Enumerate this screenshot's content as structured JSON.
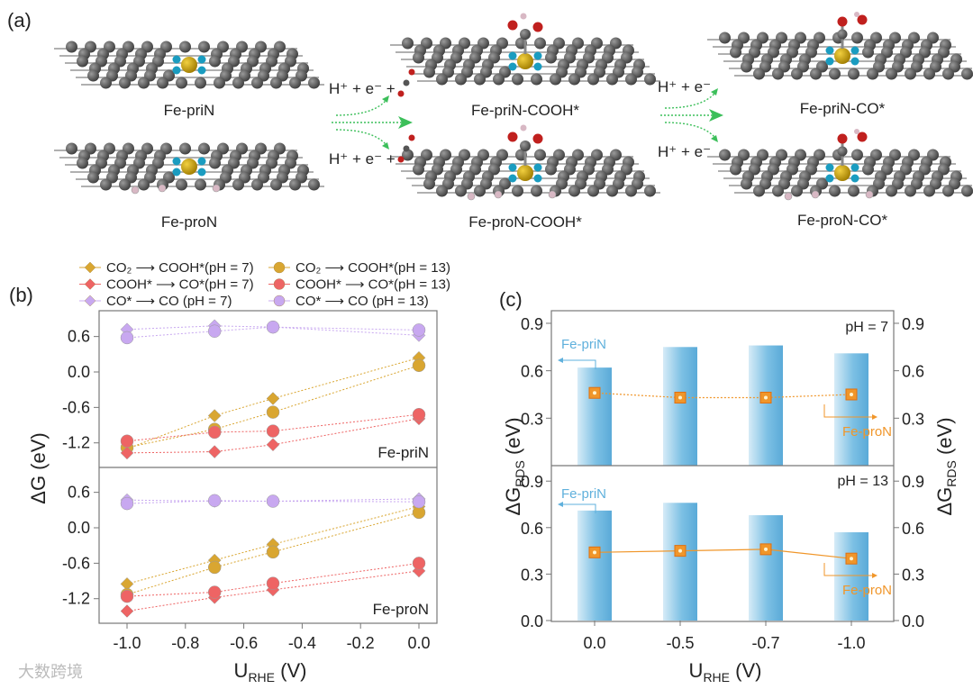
{
  "panel_a": {
    "label": "(a)",
    "structures": [
      {
        "name": "Fe-priN",
        "type": "pri",
        "ads": "none"
      },
      {
        "name": "Fe-proN",
        "type": "pro",
        "ads": "none"
      },
      {
        "name": "Fe-priN-COOH*",
        "type": "pri",
        "ads": "COOH"
      },
      {
        "name": "Fe-proN-COOH*",
        "type": "pro",
        "ads": "COOH"
      },
      {
        "name": "Fe-priN-CO*",
        "type": "pri",
        "ads": "CO"
      },
      {
        "name": "Fe-proN-CO*",
        "type": "pro",
        "ads": "CO"
      }
    ],
    "step1_top": "H⁺ + e⁻ +",
    "step1_bottom": "H⁺ + e⁻ +",
    "step2_top": "H⁺ + e⁻",
    "step2_bottom": "H⁺ + e⁻",
    "colors": {
      "carbon": "#5a5a5a",
      "iron": "#c9a210",
      "nitrogen": "#1a9cc0",
      "oxygen": "#c0201e",
      "hydrogen": "#d8b8c4",
      "arrow": "#3cbf5a"
    }
  },
  "chart_data": [
    {
      "panel_label": "(b)",
      "type": "line",
      "xlabel": {
        "main": "U",
        "sub": "RHE",
        "unit": " (V)"
      },
      "ylabel": "ΔG (eV)",
      "xlim": [
        -1.1,
        0.05
      ],
      "xticks": [
        "-1.0",
        "-0.8",
        "-0.6",
        "-0.4",
        "-0.2",
        "0.0"
      ],
      "xtick_values": [
        -1.0,
        -0.8,
        -0.6,
        -0.4,
        -0.2,
        0.0
      ],
      "yticks": [
        "0.6",
        "0.0",
        "-0.6",
        "-1.2"
      ],
      "ytick_values": [
        0.6,
        0.0,
        -0.6,
        -1.2
      ],
      "ylim": [
        -1.5,
        0.9
      ],
      "x": [
        -1.0,
        -0.7,
        -0.5,
        0.0
      ],
      "legend": [
        {
          "label": "CO₂ ⟶ COOH*(pH = 7)",
          "marker": "diamond",
          "color": "#d9a631"
        },
        {
          "label": "CO₂ ⟶ COOH*(pH = 13)",
          "marker": "circle",
          "color": "#d9a631"
        },
        {
          "label": "COOH* ⟶ CO*(pH = 7)",
          "marker": "diamond",
          "color": "#ee6464"
        },
        {
          "label": "COOH* ⟶ CO*(pH = 13)",
          "marker": "circle",
          "color": "#ee6464"
        },
        {
          "label": "CO*  ⟶  CO  (pH = 7)",
          "marker": "diamond",
          "color": "#c8a8f0"
        },
        {
          "label": "CO*  ⟶  CO  (pH = 13)",
          "marker": "circle",
          "color": "#c8a8f0"
        }
      ],
      "panels": [
        {
          "name": "Fe-priN",
          "series": [
            {
              "name": "CO2→COOH* pH7",
              "values": [
                -1.3,
                -0.74,
                -0.45,
                0.24
              ]
            },
            {
              "name": "CO2→COOH* pH13",
              "values": [
                -1.28,
                -0.97,
                -0.68,
                0.11
              ]
            },
            {
              "name": "COOH*→CO* pH7",
              "values": [
                -1.37,
                -1.35,
                -1.23,
                -0.79
              ]
            },
            {
              "name": "COOH*→CO* pH13",
              "values": [
                -1.17,
                -1.02,
                -1.0,
                -0.72
              ]
            },
            {
              "name": "CO*→CO pH7",
              "values": [
                0.72,
                0.78,
                0.76,
                0.62
              ]
            },
            {
              "name": "CO*→CO pH13",
              "values": [
                0.58,
                0.69,
                0.76,
                0.71
              ]
            }
          ]
        },
        {
          "name": "Fe-proN",
          "series": [
            {
              "name": "CO2→COOH* pH7",
              "values": [
                -0.95,
                -0.55,
                -0.28,
                0.36
              ]
            },
            {
              "name": "CO2→COOH* pH13",
              "values": [
                -1.13,
                -0.67,
                -0.41,
                0.26
              ]
            },
            {
              "name": "COOH*→CO* pH7",
              "values": [
                -1.41,
                -1.18,
                -1.05,
                -0.73
              ]
            },
            {
              "name": "COOH*→CO* pH13",
              "values": [
                -1.16,
                -1.09,
                -0.94,
                -0.6
              ]
            },
            {
              "name": "CO*→CO pH7",
              "values": [
                0.47,
                0.45,
                0.45,
                0.49
              ]
            },
            {
              "name": "CO*→CO pH13",
              "values": [
                0.41,
                0.46,
                0.45,
                0.44
              ]
            }
          ]
        }
      ]
    },
    {
      "panel_label": "(c)",
      "type": "bar",
      "categories": [
        "0.0",
        "-0.5",
        "-0.7",
        "-1.0"
      ],
      "xlabel": {
        "main": "U",
        "sub": "RHE",
        "unit": " (V)"
      },
      "ylabel": {
        "main": "ΔG",
        "sub": "RDS",
        "unit": " (eV)"
      },
      "ylim": [
        0.0,
        1.0
      ],
      "yticks_top": [
        "0.9",
        "0.6",
        "0.3"
      ],
      "yticks_bottom": [
        "0.9",
        "0.6",
        "0.3",
        "0.0"
      ],
      "bar_color": "#5fb0dc",
      "line_color": "#f0962a",
      "bar_series_label": "Fe-priN",
      "line_series_label": "Fe-proN",
      "panels": [
        {
          "condition": "pH = 7",
          "bars": [
            0.62,
            0.75,
            0.76,
            0.71
          ],
          "line": [
            0.46,
            0.43,
            0.43,
            0.45
          ]
        },
        {
          "condition": "pH = 13",
          "bars": [
            0.71,
            0.76,
            0.68,
            0.57
          ],
          "line": [
            0.44,
            0.45,
            0.46,
            0.4
          ]
        }
      ]
    }
  ],
  "watermark": "大数跨境"
}
